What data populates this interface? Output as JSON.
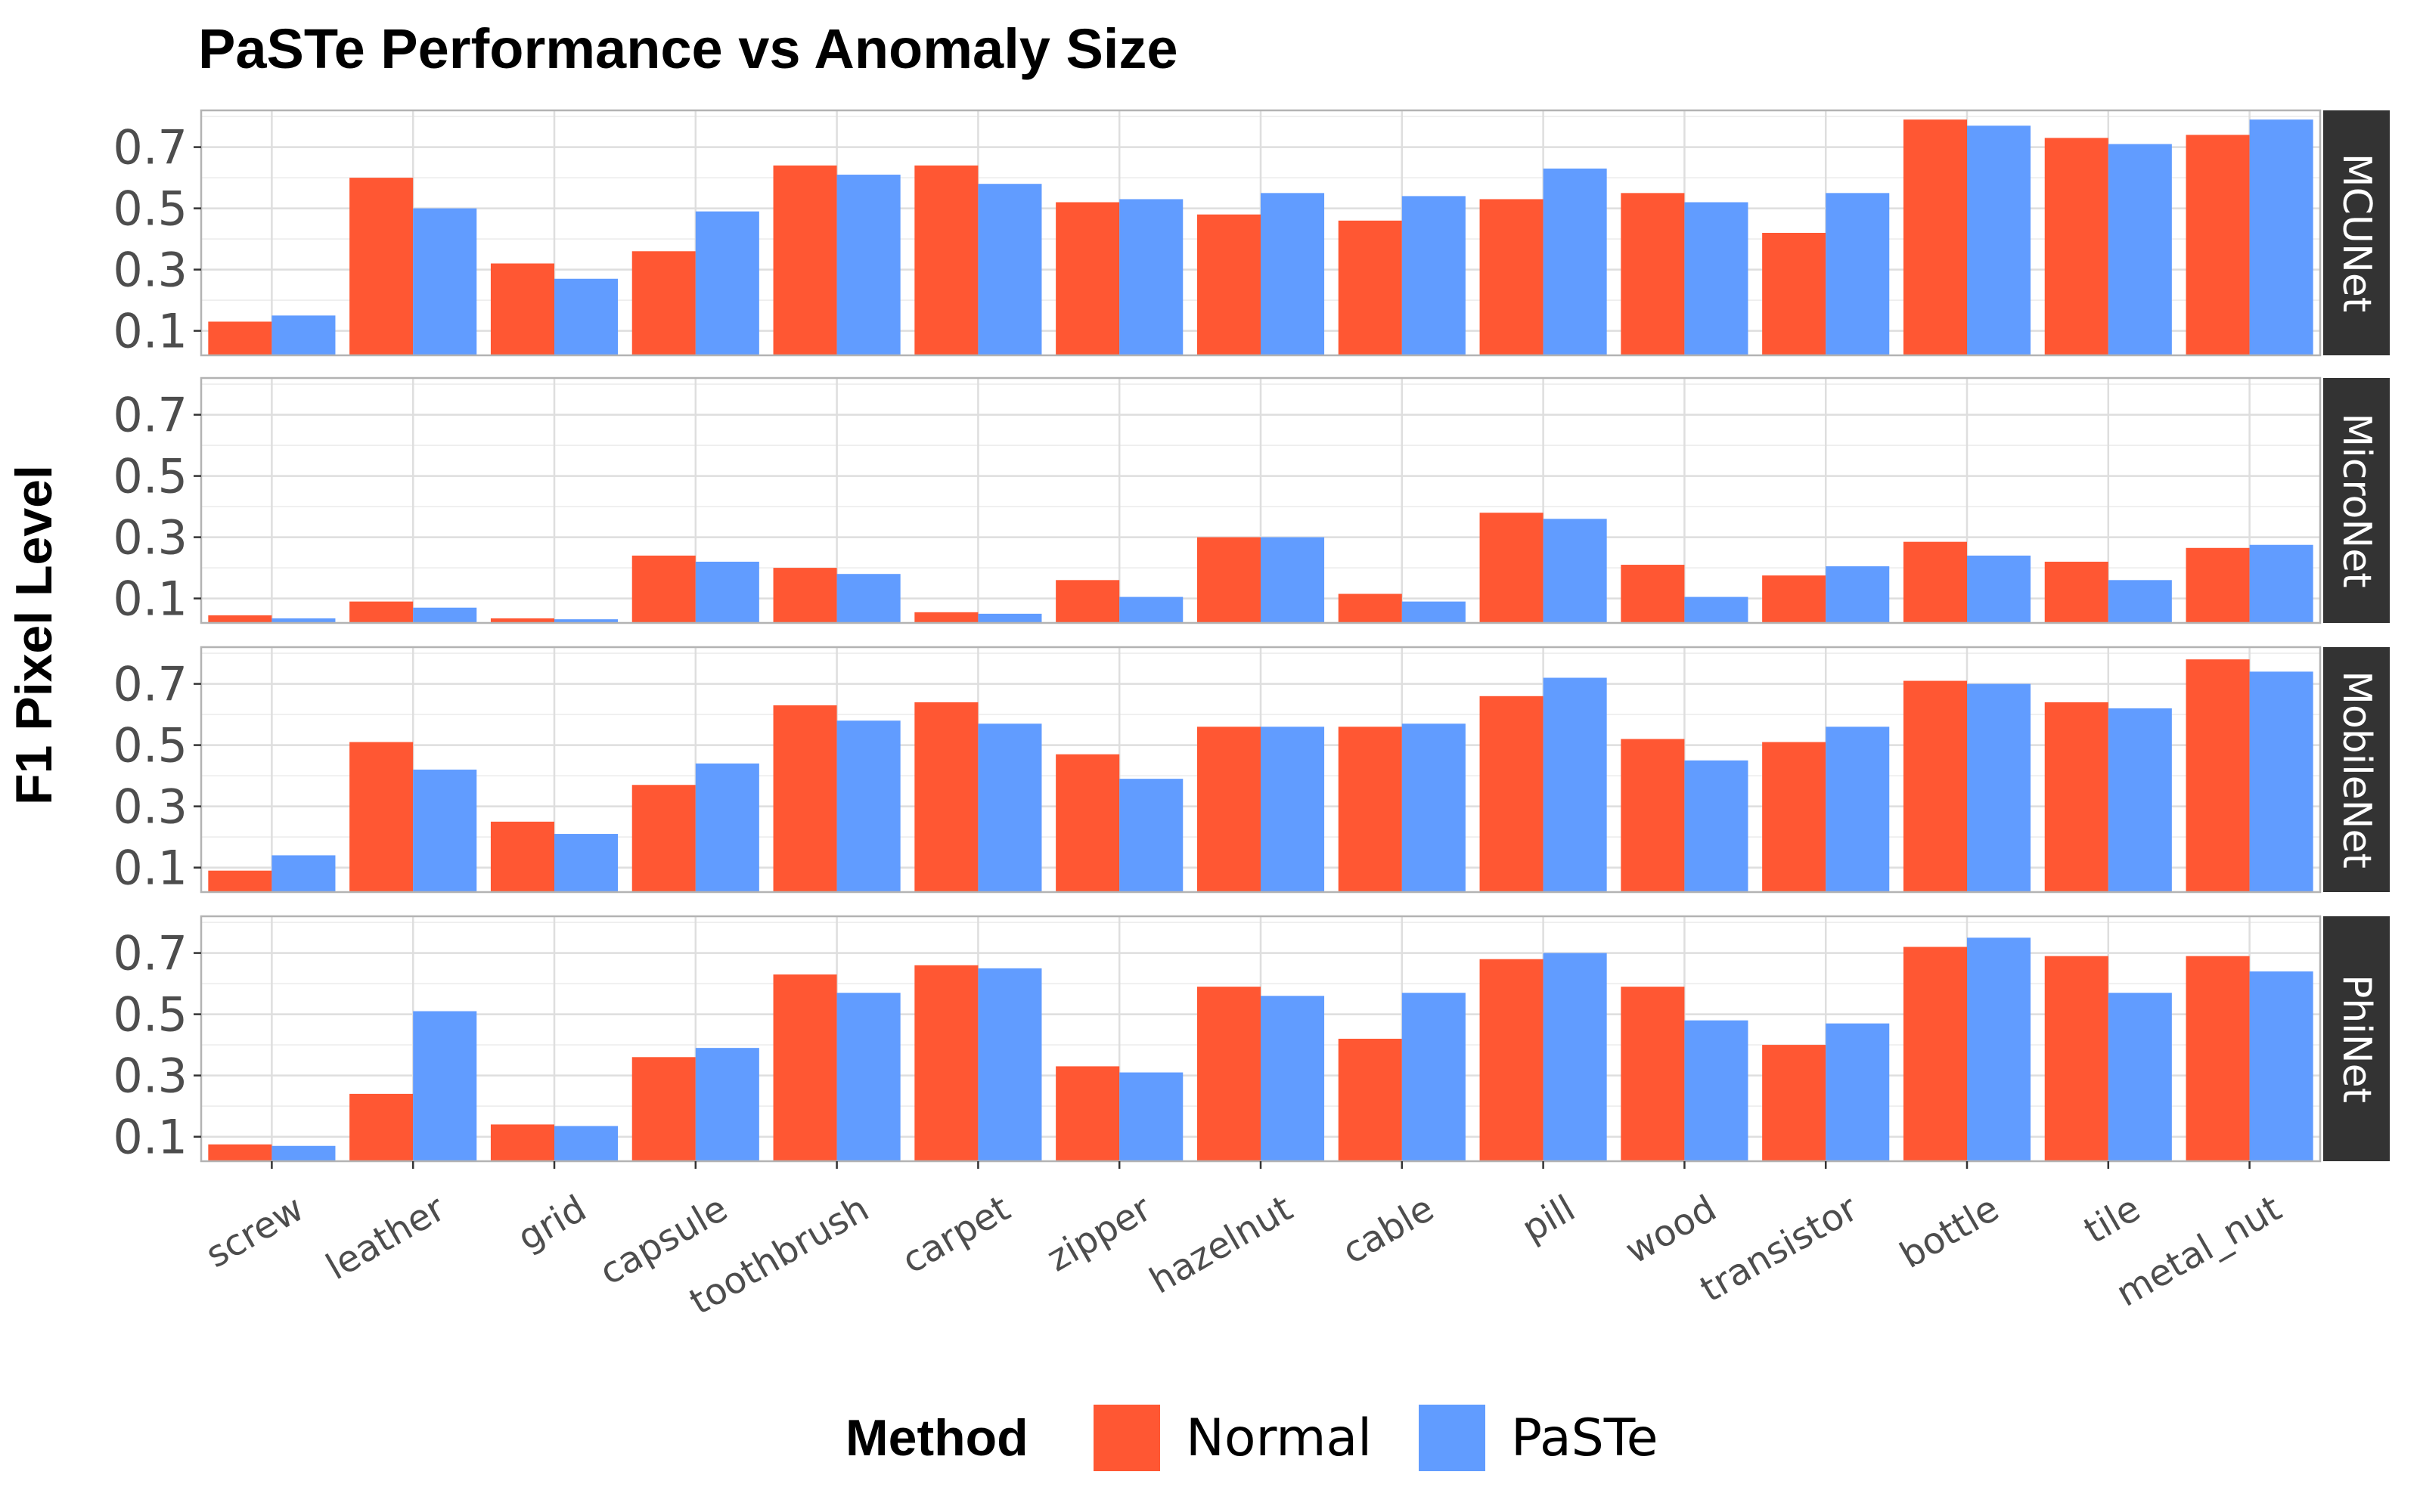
{
  "chart_data": {
    "type": "bar",
    "title": "PaSTe Performance vs Anomaly Size",
    "ylabel": "F1 Pixel Level",
    "xlabel": "",
    "ylim": [
      0.02,
      0.82
    ],
    "yticks": [
      0.1,
      0.3,
      0.5,
      0.7
    ],
    "grid": true,
    "legend": {
      "title": "Method",
      "position": "bottom"
    },
    "categories": [
      "screw",
      "leather",
      "grid",
      "capsule",
      "toothbrush",
      "carpet",
      "zipper",
      "hazelnut",
      "cable",
      "pill",
      "wood",
      "transistor",
      "bottle",
      "tile",
      "metal_nut"
    ],
    "colors": {
      "Normal": "#FF5733",
      "PaSTe": "#619CFF"
    },
    "panels": [
      {
        "name": "MCUNet",
        "series": [
          {
            "name": "Normal",
            "values": [
              0.13,
              0.6,
              0.32,
              0.36,
              0.64,
              0.64,
              0.52,
              0.48,
              0.46,
              0.53,
              0.55,
              0.42,
              0.79,
              0.73,
              0.74
            ]
          },
          {
            "name": "PaSTe",
            "values": [
              0.15,
              0.5,
              0.27,
              0.49,
              0.61,
              0.58,
              0.53,
              0.55,
              0.54,
              0.63,
              0.52,
              0.55,
              0.77,
              0.71,
              0.79
            ]
          }
        ]
      },
      {
        "name": "MicroNet",
        "series": [
          {
            "name": "Normal",
            "values": [
              0.045,
              0.09,
              0.035,
              0.24,
              0.2,
              0.055,
              0.16,
              0.3,
              0.115,
              0.38,
              0.21,
              0.175,
              0.285,
              0.22,
              0.265
            ]
          },
          {
            "name": "PaSTe",
            "values": [
              0.035,
              0.07,
              0.032,
              0.22,
              0.18,
              0.05,
              0.105,
              0.3,
              0.09,
              0.36,
              0.105,
              0.205,
              0.24,
              0.16,
              0.275
            ]
          }
        ]
      },
      {
        "name": "MobileNet",
        "series": [
          {
            "name": "Normal",
            "values": [
              0.09,
              0.51,
              0.25,
              0.37,
              0.63,
              0.64,
              0.47,
              0.56,
              0.56,
              0.66,
              0.52,
              0.51,
              0.71,
              0.64,
              0.78
            ]
          },
          {
            "name": "PaSTe",
            "values": [
              0.14,
              0.42,
              0.21,
              0.44,
              0.58,
              0.57,
              0.39,
              0.56,
              0.57,
              0.72,
              0.45,
              0.56,
              0.7,
              0.62,
              0.74
            ]
          }
        ]
      },
      {
        "name": "PhiNet",
        "series": [
          {
            "name": "Normal",
            "values": [
              0.075,
              0.24,
              0.14,
              0.36,
              0.63,
              0.66,
              0.33,
              0.59,
              0.42,
              0.68,
              0.59,
              0.4,
              0.72,
              0.69,
              0.69
            ]
          },
          {
            "name": "PaSTe",
            "values": [
              0.07,
              0.51,
              0.135,
              0.39,
              0.57,
              0.65,
              0.31,
              0.56,
              0.57,
              0.7,
              0.48,
              0.47,
              0.75,
              0.57,
              0.64
            ]
          }
        ]
      }
    ]
  }
}
